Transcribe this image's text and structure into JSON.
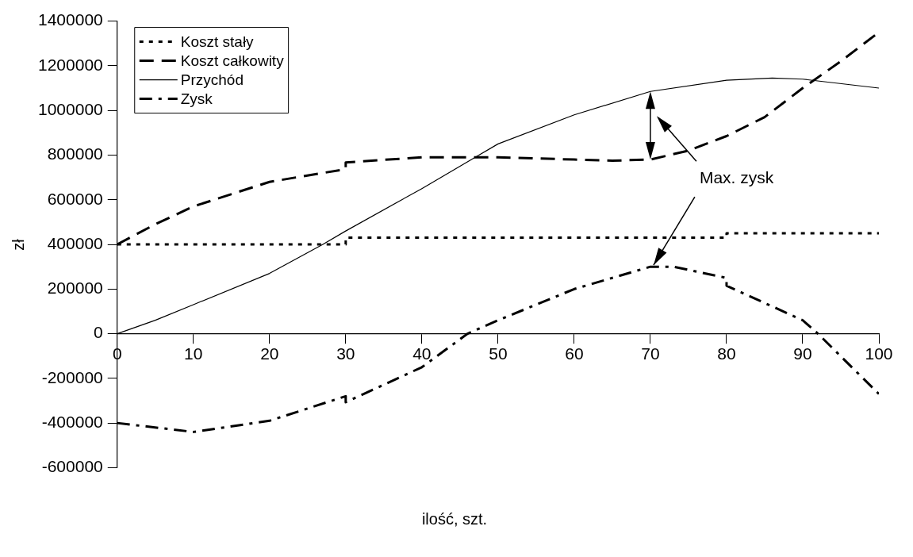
{
  "chart_data": {
    "type": "line",
    "xlabel": "ilość, szt.",
    "ylabel": "zł",
    "xlim": [
      0,
      100
    ],
    "xticks": [
      0,
      10,
      20,
      30,
      40,
      50,
      60,
      70,
      80,
      90,
      100
    ],
    "ylim": [
      -600000,
      1400000
    ],
    "yticks": [
      -600000,
      -400000,
      -200000,
      0,
      200000,
      400000,
      600000,
      800000,
      1000000,
      1200000,
      1400000
    ],
    "grid": false,
    "legend": "top left",
    "series": [
      {
        "name": "Koszt stały",
        "color": "#000000",
        "line_style": "dotted",
        "x": [
          0,
          30,
          30,
          80,
          80,
          100
        ],
        "values": [
          400000,
          400000,
          430000,
          430000,
          450000,
          450000
        ]
      },
      {
        "name": "Koszt całkowity",
        "color": "#000000",
        "line_style": "dashed",
        "x": [
          0,
          5,
          10,
          20,
          30,
          30,
          40,
          50,
          60,
          65,
          70,
          75,
          80,
          85,
          90,
          95,
          100
        ],
        "values": [
          400000,
          490000,
          570000,
          680000,
          737000,
          767000,
          790000,
          790000,
          780000,
          775000,
          780000,
          820000,
          885000,
          970000,
          1100000,
          1220000,
          1350000
        ]
      },
      {
        "name": "Przychód",
        "color": "#000000",
        "line_style": "solid",
        "x": [
          0,
          5,
          10,
          20,
          27,
          30,
          40,
          47,
          50,
          60,
          70,
          80,
          86,
          90,
          100
        ],
        "values": [
          0,
          60000,
          130000,
          270000,
          400000,
          460000,
          650000,
          790000,
          850000,
          980000,
          1085000,
          1135000,
          1145000,
          1140000,
          1100000
        ]
      },
      {
        "name": "Zysk",
        "color": "#000000",
        "line_style": "dashdot",
        "x": [
          0,
          10,
          20,
          30,
          30,
          40,
          46,
          50,
          60,
          70,
          73,
          80,
          80,
          90,
          92,
          100
        ],
        "values": [
          -400000,
          -440000,
          -390000,
          -280000,
          -307000,
          -150000,
          0,
          60000,
          200000,
          300000,
          300000,
          250000,
          215000,
          60000,
          0,
          -270000
        ]
      }
    ],
    "annotations": [
      {
        "text": "Max. zysk",
        "x": 70,
        "y": 300000
      }
    ]
  }
}
